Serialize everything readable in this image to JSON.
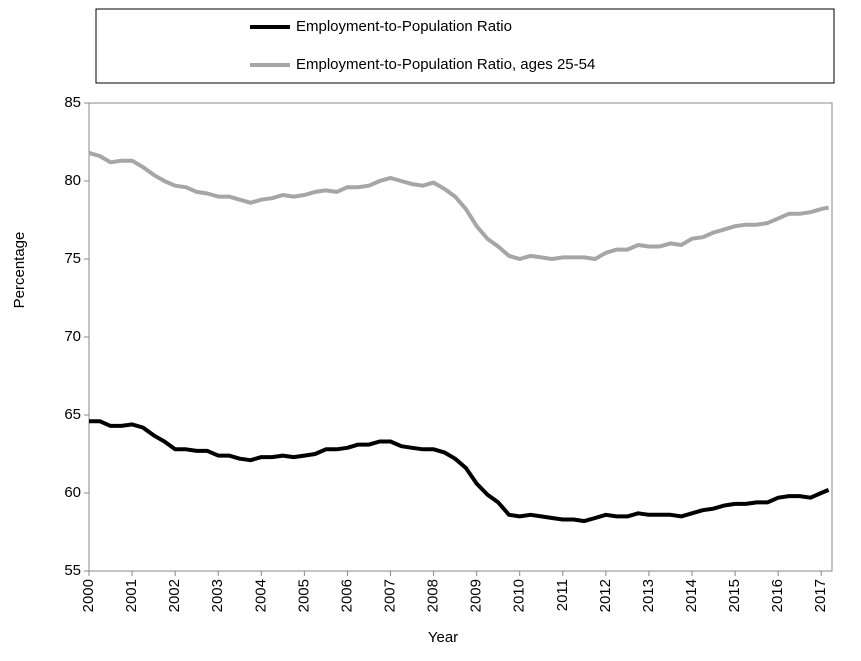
{
  "chart_data": {
    "type": "line",
    "xlabel": "Year",
    "ylabel": "Percentage",
    "x": [
      2000,
      2000.25,
      2000.5,
      2000.75,
      2001,
      2001.25,
      2001.5,
      2001.75,
      2002,
      2002.25,
      2002.5,
      2002.75,
      2003,
      2003.25,
      2003.5,
      2003.75,
      2004,
      2004.25,
      2004.5,
      2004.75,
      2005,
      2005.25,
      2005.5,
      2005.75,
      2006,
      2006.25,
      2006.5,
      2006.75,
      2007,
      2007.25,
      2007.5,
      2007.75,
      2008,
      2008.25,
      2008.5,
      2008.75,
      2009,
      2009.25,
      2009.5,
      2009.75,
      2010,
      2010.25,
      2010.5,
      2010.75,
      2011,
      2011.25,
      2011.5,
      2011.75,
      2012,
      2012.25,
      2012.5,
      2012.75,
      2013,
      2013.25,
      2013.5,
      2013.75,
      2014,
      2014.25,
      2014.5,
      2014.75,
      2015,
      2015.25,
      2015.5,
      2015.75,
      2016,
      2016.25,
      2016.5,
      2016.75,
      2017,
      2017.17
    ],
    "series": [
      {
        "name": "Employment-to-Population Ratio",
        "color": "#000000",
        "values": [
          64.6,
          64.6,
          64.3,
          64.3,
          64.4,
          64.2,
          63.7,
          63.3,
          62.8,
          62.8,
          62.7,
          62.7,
          62.4,
          62.4,
          62.2,
          62.1,
          62.3,
          62.3,
          62.4,
          62.3,
          62.4,
          62.5,
          62.8,
          62.8,
          62.9,
          63.1,
          63.1,
          63.3,
          63.3,
          63.0,
          62.9,
          62.8,
          62.8,
          62.6,
          62.2,
          61.6,
          60.6,
          59.9,
          59.4,
          58.6,
          58.5,
          58.6,
          58.5,
          58.4,
          58.3,
          58.3,
          58.2,
          58.4,
          58.6,
          58.5,
          58.5,
          58.7,
          58.6,
          58.6,
          58.6,
          58.5,
          58.7,
          58.9,
          59.0,
          59.2,
          59.3,
          59.3,
          59.4,
          59.4,
          59.7,
          59.8,
          59.8,
          59.7,
          60.0,
          60.2
        ]
      },
      {
        "name": "Employment-to-Population Ratio, ages 25-54",
        "color": "#a6a6a6",
        "values": [
          81.8,
          81.6,
          81.2,
          81.3,
          81.3,
          80.9,
          80.4,
          80.0,
          79.7,
          79.6,
          79.3,
          79.2,
          79.0,
          79.0,
          78.8,
          78.6,
          78.8,
          78.9,
          79.1,
          79.0,
          79.1,
          79.3,
          79.4,
          79.3,
          79.6,
          79.6,
          79.7,
          80.0,
          80.2,
          80.0,
          79.8,
          79.7,
          79.9,
          79.5,
          79.0,
          78.2,
          77.1,
          76.3,
          75.8,
          75.2,
          75.0,
          75.2,
          75.1,
          75.0,
          75.1,
          75.1,
          75.1,
          75.0,
          75.4,
          75.6,
          75.6,
          75.9,
          75.8,
          75.8,
          76.0,
          75.9,
          76.3,
          76.4,
          76.7,
          76.9,
          77.1,
          77.2,
          77.2,
          77.3,
          77.6,
          77.9,
          77.9,
          78.0,
          78.2,
          78.3
        ]
      }
    ],
    "xlim": [
      2000,
      2017.25
    ],
    "xticks": [
      2000,
      2001,
      2002,
      2003,
      2004,
      2005,
      2006,
      2007,
      2008,
      2009,
      2010,
      2011,
      2012,
      2013,
      2014,
      2015,
      2016,
      2017
    ],
    "ylim": [
      55,
      85
    ],
    "yticks": [
      55,
      60,
      65,
      70,
      75,
      80,
      85
    ],
    "grid": false,
    "legend": "top"
  }
}
